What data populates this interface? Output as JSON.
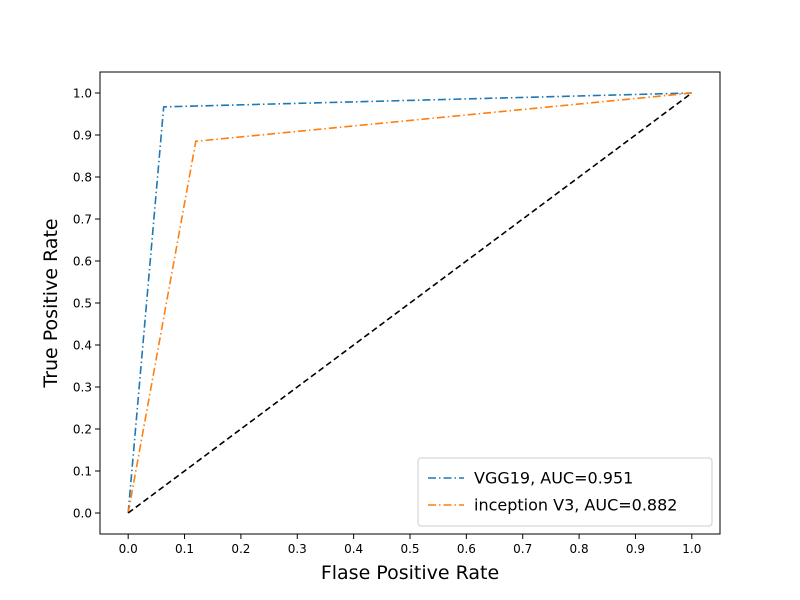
{
  "chart_data": {
    "type": "line",
    "title": "",
    "xlabel": "Flase Positive Rate",
    "ylabel": "True Positive Rate",
    "xlim": [
      -0.05,
      1.05
    ],
    "ylim": [
      -0.05,
      1.05
    ],
    "xticks": [
      0.0,
      0.1,
      0.2,
      0.3,
      0.4,
      0.5,
      0.6,
      0.7,
      0.8,
      0.9,
      1.0
    ],
    "yticks": [
      0.0,
      0.1,
      0.2,
      0.3,
      0.4,
      0.5,
      0.6,
      0.7,
      0.8,
      0.9,
      1.0
    ],
    "xtick_labels": [
      "0.0",
      "0.1",
      "0.2",
      "0.3",
      "0.4",
      "0.5",
      "0.6",
      "0.7",
      "0.8",
      "0.9",
      "1.0"
    ],
    "ytick_labels": [
      "0.0",
      "0.1",
      "0.2",
      "0.3",
      "0.4",
      "0.5",
      "0.6",
      "0.7",
      "0.8",
      "0.9",
      "1.0"
    ],
    "grid": false,
    "legend_position": "bottom-right",
    "series": [
      {
        "name": "VGG19, AUC=0.951",
        "color": "#1f77b4",
        "linestyle": "dashdot",
        "x": [
          0.0,
          0.063,
          1.0
        ],
        "y": [
          0.0,
          0.967,
          1.0
        ]
      },
      {
        "name": "inception V3, AUC=0.882",
        "color": "#ff7f0e",
        "linestyle": "dashdot",
        "x": [
          0.0,
          0.12,
          1.0
        ],
        "y": [
          0.0,
          0.885,
          1.0
        ]
      },
      {
        "color": "#000000",
        "linestyle": "dashed",
        "x": [
          0.0,
          1.0
        ],
        "y": [
          0.0,
          1.0
        ]
      }
    ]
  }
}
